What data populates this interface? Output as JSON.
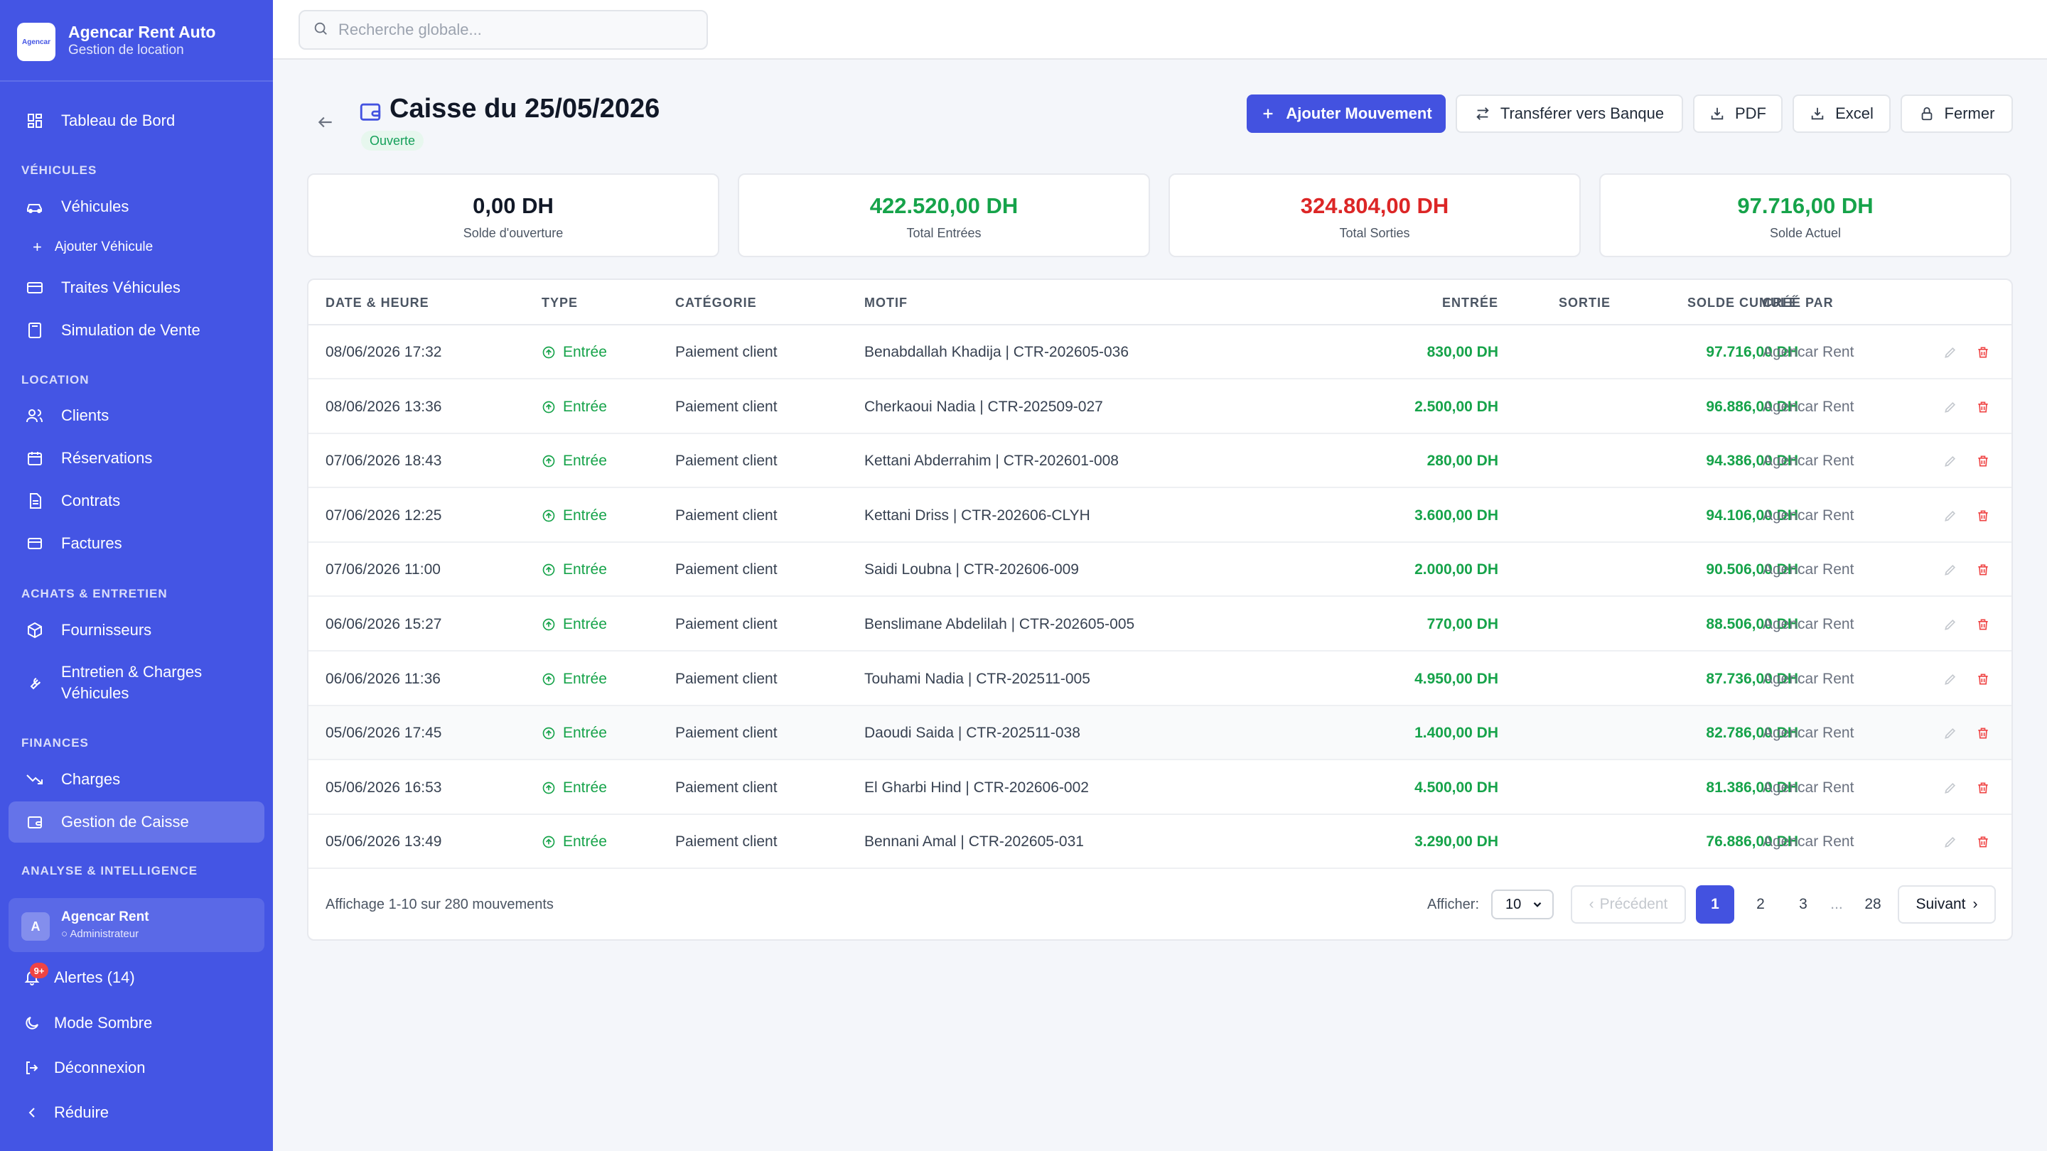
{
  "brand": {
    "name": "Agencar Rent Auto",
    "subtitle": "Gestion de location",
    "logo_text": "Agencar"
  },
  "search": {
    "placeholder": "Recherche globale..."
  },
  "sidebar": {
    "dashboard": "Tableau de Bord",
    "sections": {
      "vehicules": "VÉHICULES",
      "location": "LOCATION",
      "achats": "ACHATS & ENTRETIEN",
      "finances": "FINANCES",
      "analyse": "ANALYSE & INTELLIGENCE"
    },
    "items": {
      "vehicules": "Véhicules",
      "ajouter_vehicule": "Ajouter Véhicule",
      "traites": "Traites Véhicules",
      "simulation": "Simulation de Vente",
      "clients": "Clients",
      "reservations": "Réservations",
      "contrats": "Contrats",
      "factures": "Factures",
      "fournisseurs": "Fournisseurs",
      "entretien_line1": "Entretien & Charges",
      "entretien_line2": "Véhicules",
      "charges": "Charges",
      "caisse": "Gestion de Caisse"
    },
    "user": {
      "initial": "A",
      "name": "Agencar Rent",
      "role": "Administrateur"
    },
    "alerts": {
      "label": "Alertes (14)",
      "badge": "9+"
    },
    "dark_mode": "Mode Sombre",
    "logout": "Déconnexion",
    "collapse": "Réduire"
  },
  "header": {
    "title": "Caisse du 25/05/2026",
    "status": "Ouverte",
    "buttons": {
      "add": "Ajouter Mouvement",
      "transfer": "Transférer vers Banque",
      "pdf": "PDF",
      "excel": "Excel",
      "close": "Fermer"
    }
  },
  "stats": [
    {
      "value": "0,00 DH",
      "label": "Solde d'ouverture",
      "color": "#111827"
    },
    {
      "value": "422.520,00 DH",
      "label": "Total Entrées",
      "color": "#16a34a"
    },
    {
      "value": "324.804,00 DH",
      "label": "Total Sorties",
      "color": "#dc2626"
    },
    {
      "value": "97.716,00 DH",
      "label": "Solde Actuel",
      "color": "#16a34a"
    }
  ],
  "table": {
    "columns": {
      "date": "DATE & HEURE",
      "type": "TYPE",
      "category": "CATÉGORIE",
      "motif": "MOTIF",
      "entree": "ENTRÉE",
      "sortie": "SORTIE",
      "solde": "SOLDE CUMULÉ",
      "created_by": "CRÉÉ PAR"
    },
    "rows": [
      {
        "date": "08/06/2026 17:32",
        "type": "Entrée",
        "category": "Paiement client",
        "motif": "Benabdallah Khadija | CTR-202605-036",
        "entree": "830,00 DH",
        "sortie": "",
        "solde": "97.716,00 DH",
        "created_by": "Agencar Rent"
      },
      {
        "date": "08/06/2026 13:36",
        "type": "Entrée",
        "category": "Paiement client",
        "motif": "Cherkaoui Nadia | CTR-202509-027",
        "entree": "2.500,00 DH",
        "sortie": "",
        "solde": "96.886,00 DH",
        "created_by": "Agencar Rent"
      },
      {
        "date": "07/06/2026 18:43",
        "type": "Entrée",
        "category": "Paiement client",
        "motif": "Kettani Abderrahim | CTR-202601-008",
        "entree": "280,00 DH",
        "sortie": "",
        "solde": "94.386,00 DH",
        "created_by": "Agencar Rent"
      },
      {
        "date": "07/06/2026 12:25",
        "type": "Entrée",
        "category": "Paiement client",
        "motif": "Kettani Driss | CTR-202606-CLYH",
        "entree": "3.600,00 DH",
        "sortie": "",
        "solde": "94.106,00 DH",
        "created_by": "Agencar Rent"
      },
      {
        "date": "07/06/2026 11:00",
        "type": "Entrée",
        "category": "Paiement client",
        "motif": "Saidi Loubna | CTR-202606-009",
        "entree": "2.000,00 DH",
        "sortie": "",
        "solde": "90.506,00 DH",
        "created_by": "Agencar Rent"
      },
      {
        "date": "06/06/2026 15:27",
        "type": "Entrée",
        "category": "Paiement client",
        "motif": "Benslimane Abdelilah | CTR-202605-005",
        "entree": "770,00 DH",
        "sortie": "",
        "solde": "88.506,00 DH",
        "created_by": "Agencar Rent"
      },
      {
        "date": "06/06/2026 11:36",
        "type": "Entrée",
        "category": "Paiement client",
        "motif": "Touhami Nadia | CTR-202511-005",
        "entree": "4.950,00 DH",
        "sortie": "",
        "solde": "87.736,00 DH",
        "created_by": "Agencar Rent"
      },
      {
        "date": "05/06/2026 17:45",
        "type": "Entrée",
        "category": "Paiement client",
        "motif": "Daoudi Saida | CTR-202511-038",
        "entree": "1.400,00 DH",
        "sortie": "",
        "solde": "82.786,00 DH",
        "created_by": "Agencar Rent"
      },
      {
        "date": "05/06/2026 16:53",
        "type": "Entrée",
        "category": "Paiement client",
        "motif": "El Gharbi Hind | CTR-202606-002",
        "entree": "4.500,00 DH",
        "sortie": "",
        "solde": "81.386,00 DH",
        "created_by": "Agencar Rent"
      },
      {
        "date": "05/06/2026 13:49",
        "type": "Entrée",
        "category": "Paiement client",
        "motif": "Bennani Amal | CTR-202605-031",
        "entree": "3.290,00 DH",
        "sortie": "",
        "solde": "76.886,00 DH",
        "created_by": "Agencar Rent"
      }
    ]
  },
  "pagination": {
    "info": "Affichage 1-10 sur 280 mouvements",
    "show_label": "Afficher:",
    "page_size": "10",
    "prev": "Précédent",
    "pages": [
      "1",
      "2",
      "3",
      "...",
      "28"
    ],
    "next": "Suivant"
  },
  "colors": {
    "sidebar": "#4455e4",
    "primary": "#4352e0",
    "positive": "#16a34a",
    "negative": "#dc2626",
    "status_bg": "#e7f7ee"
  }
}
